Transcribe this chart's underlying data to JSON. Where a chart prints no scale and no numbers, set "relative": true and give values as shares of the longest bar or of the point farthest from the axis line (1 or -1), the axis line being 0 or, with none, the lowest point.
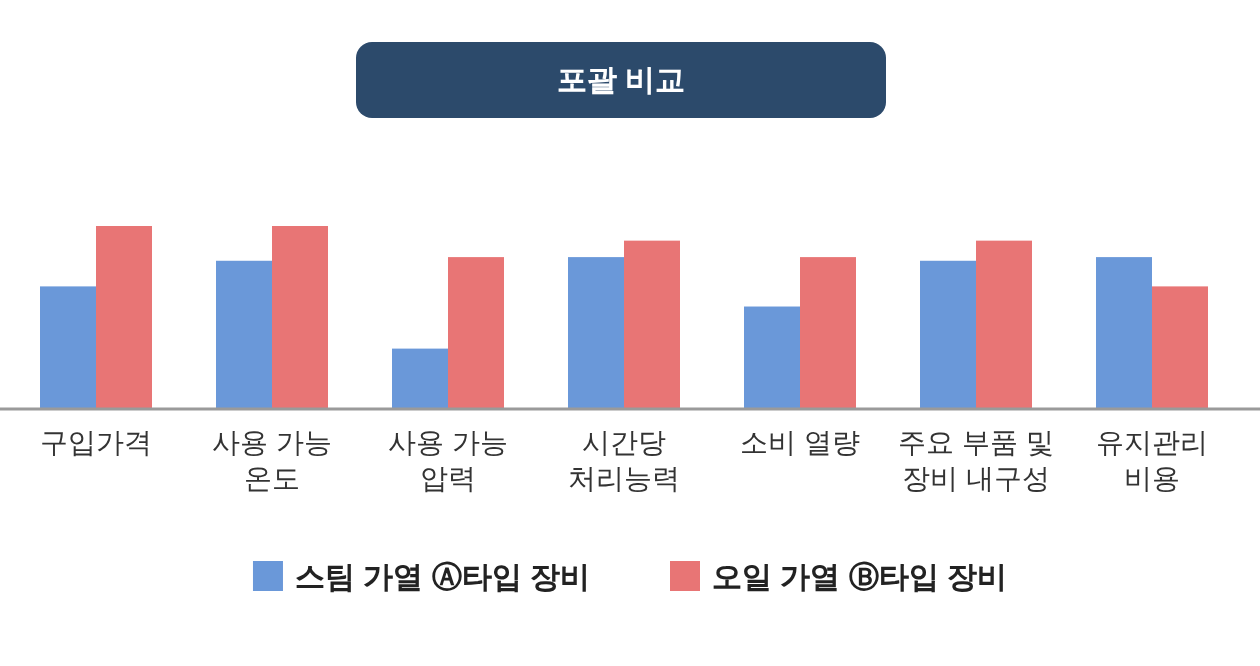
{
  "chart_data": {
    "type": "bar",
    "title": "포괄 비교",
    "relative": true,
    "legend": "bottom",
    "categories": [
      "구입가격",
      "사용 가능\n온도",
      "사용 가능\n압력",
      "시간당\n처리능력",
      "소비 열량",
      "주요 부품 및\n장비 내구성",
      "유지관리\n비용"
    ],
    "series": [
      {
        "name": "스팀 가열 Ⓐ타입 장비",
        "color": "#6a98d9",
        "values": [
          0.67,
          0.81,
          0.33,
          0.83,
          0.56,
          0.81,
          0.83
        ]
      },
      {
        "name": "오일 가열 Ⓑ타입 장비",
        "color": "#e87575",
        "values": [
          1,
          1,
          0.83,
          0.92,
          0.83,
          0.92,
          0.67
        ]
      }
    ]
  }
}
